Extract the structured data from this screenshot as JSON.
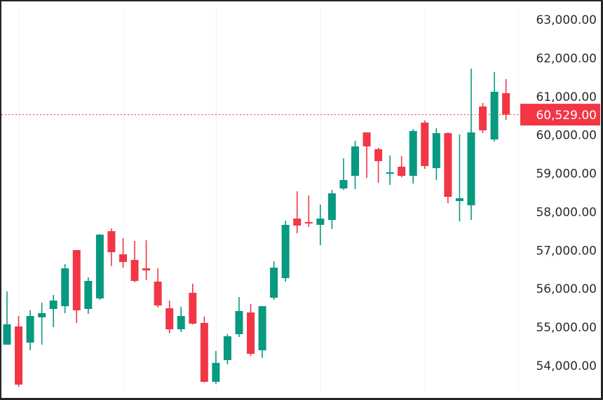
{
  "colors": {
    "up": "#089981",
    "down": "#f23645",
    "grid": "#f0f0f0",
    "axis_text": "#2b2b2b",
    "frame": "#242424",
    "price_line": "#f23645",
    "price_tag_bg": "#f23645",
    "price_tag_text": "#ffffff"
  },
  "price_axis": {
    "ticks": [
      {
        "value": 63000,
        "label": "63,000.00"
      },
      {
        "value": 62000,
        "label": "62,000.00"
      },
      {
        "value": 61000,
        "label": "61,000.00"
      },
      {
        "value": 60000,
        "label": "60,000.00"
      },
      {
        "value": 59000,
        "label": "59,000.00"
      },
      {
        "value": 58000,
        "label": "58,000.00"
      },
      {
        "value": 57000,
        "label": "57,000.00"
      },
      {
        "value": 56000,
        "label": "56,000.00"
      },
      {
        "value": 55000,
        "label": "55,000.00"
      },
      {
        "value": 54000,
        "label": "54,000.00"
      }
    ]
  },
  "last_price": {
    "value": 60529,
    "label": "60,529.00"
  },
  "chart_data": {
    "type": "candlestick",
    "title": "",
    "xlabel": "",
    "ylabel": "",
    "ylim": [
      53300,
      63500
    ],
    "grid": {
      "horizontal": false,
      "vertical": true,
      "vertical_at_candle_index": [
        1,
        10,
        18,
        27,
        36
      ]
    },
    "y_tick_labels": [
      "63,000.00",
      "62,000.00",
      "61,000.00",
      "60,000.00",
      "59,000.00",
      "58,000.00",
      "57,000.00",
      "56,000.00",
      "55,000.00",
      "54,000.00"
    ],
    "last_price_label": "60,529.00",
    "columns": [
      "open",
      "high",
      "low",
      "close"
    ],
    "candles": [
      [
        54546,
        55931,
        54546,
        55075
      ],
      [
        55020,
        55293,
        53453,
        53508
      ],
      [
        54600,
        55439,
        54400,
        55293
      ],
      [
        55257,
        55639,
        54546,
        55366
      ],
      [
        55475,
        55840,
        55002,
        55694
      ],
      [
        55548,
        56641,
        55366,
        56532
      ],
      [
        57006,
        57006,
        55111,
        55439
      ],
      [
        55475,
        56295,
        55348,
        56204
      ],
      [
        55748,
        57425,
        55712,
        57407
      ],
      [
        57498,
        57570,
        56587,
        56951
      ],
      [
        56896,
        57315,
        56550,
        56696
      ],
      [
        56750,
        57243,
        56168,
        56204
      ],
      [
        56532,
        57261,
        56222,
        56477
      ],
      [
        56186,
        56532,
        55512,
        55566
      ],
      [
        55493,
        55694,
        54838,
        54947
      ],
      [
        54947,
        55530,
        54874,
        55293
      ],
      [
        55894,
        56131,
        55075,
        55093
      ],
      [
        55111,
        55275,
        53562,
        53580
      ],
      [
        53580,
        54382,
        53526,
        54072
      ],
      [
        54145,
        54819,
        54036,
        54765
      ],
      [
        54819,
        55785,
        54746,
        55421
      ],
      [
        55384,
        55603,
        54254,
        54309
      ],
      [
        54400,
        55548,
        54200,
        55548
      ],
      [
        55767,
        56714,
        55712,
        56550
      ],
      [
        56277,
        57771,
        56186,
        57662
      ],
      [
        57826,
        58536,
        57443,
        57644
      ],
      [
        57735,
        58427,
        57607,
        57698
      ],
      [
        57662,
        58190,
        57133,
        57826
      ],
      [
        57789,
        58573,
        57552,
        58481
      ],
      [
        58609,
        59392,
        58573,
        58828
      ],
      [
        58937,
        59848,
        58591,
        59702
      ],
      [
        60067,
        60067,
        58882,
        59702
      ],
      [
        59629,
        59666,
        58755,
        59320
      ],
      [
        58992,
        59465,
        58700,
        59028
      ],
      [
        59174,
        59447,
        58900,
        58937
      ],
      [
        58937,
        60158,
        58737,
        60103
      ],
      [
        60322,
        60376,
        59119,
        59192
      ],
      [
        59137,
        60176,
        58828,
        60048
      ],
      [
        60048,
        60067,
        58226,
        58390
      ],
      [
        58281,
        60012,
        57753,
        58354
      ],
      [
        58172,
        61725,
        57789,
        60067
      ],
      [
        60741,
        60832,
        60048,
        60121
      ],
      [
        59884,
        61634,
        59830,
        61123
      ],
      [
        61087,
        61451,
        60394,
        60529
      ]
    ]
  }
}
